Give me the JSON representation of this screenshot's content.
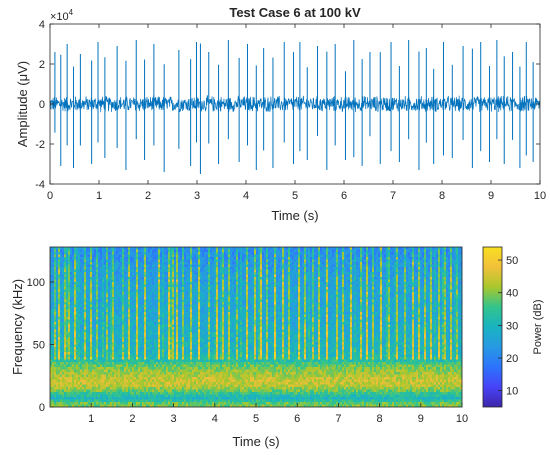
{
  "chart_data": [
    {
      "type": "line",
      "title": "Test Case 6 at 100 kV",
      "xlabel": "Time (s)",
      "ylabel": "Amplitude (μV)",
      "y_exponent_label": "×10",
      "y_exponent_power": "4",
      "xlim": [
        0,
        10
      ],
      "ylim": [
        -4,
        4
      ],
      "y_scale_factor": 10000,
      "x_ticks": [
        0,
        1,
        2,
        3,
        4,
        5,
        6,
        7,
        8,
        9,
        10
      ],
      "y_ticks": [
        -4,
        -2,
        0,
        2,
        4
      ],
      "grid": false,
      "line_color": "#0072BD",
      "noise_band": 0.45,
      "pulses_x": [
        0.1,
        0.22,
        0.35,
        0.48,
        0.62,
        0.85,
        0.98,
        1.12,
        1.37,
        1.55,
        1.76,
        1.93,
        2.12,
        2.33,
        2.63,
        2.87,
        2.99,
        3.07,
        3.24,
        3.44,
        3.64,
        3.86,
        4.03,
        4.21,
        4.36,
        4.55,
        4.78,
        4.97,
        5.1,
        5.25,
        5.46,
        5.65,
        5.82,
        6.03,
        6.2,
        6.37,
        6.53,
        6.74,
        6.96,
        7.13,
        7.32,
        7.53,
        7.68,
        7.83,
        8.03,
        8.21,
        8.43,
        8.62,
        8.79,
        8.97,
        9.12,
        9.27,
        9.44,
        9.59,
        9.72,
        9.86
      ],
      "pulses_amp": [
        2.6,
        -3.1,
        3.0,
        -3.2,
        2.5,
        -3.0,
        3.1,
        -2.7,
        2.9,
        -3.3,
        3.2,
        -2.8,
        3.0,
        -3.4,
        2.7,
        -3.1,
        3.1,
        -3.5,
        2.6,
        -3.0,
        3.2,
        -2.9,
        3.0,
        -3.3,
        2.8,
        -3.2,
        3.1,
        -3.0,
        3.1,
        -2.8,
        2.9,
        -3.3,
        3.0,
        -2.8,
        3.2,
        -3.1,
        2.6,
        -3.0,
        3.1,
        -2.9,
        3.2,
        -3.3,
        2.8,
        -3.0,
        3.1,
        -2.7,
        2.9,
        -3.2,
        3.1,
        -2.9,
        3.2,
        -3.0,
        2.6,
        -3.2,
        3.1,
        -2.9
      ]
    },
    {
      "type": "heatmap",
      "xlabel": "Time (s)",
      "ylabel": "Frequency (kHz)",
      "xlim": [
        0,
        10
      ],
      "ylim": [
        0,
        128
      ],
      "x_ticks": [
        1,
        2,
        3,
        4,
        5,
        6,
        7,
        8,
        9,
        10
      ],
      "y_ticks": [
        0,
        50,
        100
      ],
      "colorbar_label": "Power (dB)",
      "colorbar_range": [
        5,
        54
      ],
      "colorbar_ticks": [
        10,
        20,
        30,
        40,
        50
      ],
      "colormap": [
        "#3e26a8",
        "#4743f8",
        "#2c73fc",
        "#2799e3",
        "#19b3c1",
        "#32c48c",
        "#a9c72d",
        "#f2c03a",
        "#f9e021"
      ],
      "frequency_profile_db": [
        [
          0,
          40
        ],
        [
          3,
          38
        ],
        [
          7,
          30
        ],
        [
          10,
          34
        ],
        [
          14,
          40
        ],
        [
          18,
          44
        ],
        [
          22,
          44
        ],
        [
          26,
          42
        ],
        [
          30,
          40
        ],
        [
          34,
          38
        ],
        [
          37,
          33
        ],
        [
          42,
          30
        ],
        [
          50,
          29
        ],
        [
          60,
          28
        ],
        [
          70,
          27
        ],
        [
          80,
          26
        ],
        [
          90,
          26
        ],
        [
          100,
          25
        ],
        [
          110,
          24
        ],
        [
          120,
          22
        ],
        [
          128,
          21
        ]
      ]
    }
  ]
}
